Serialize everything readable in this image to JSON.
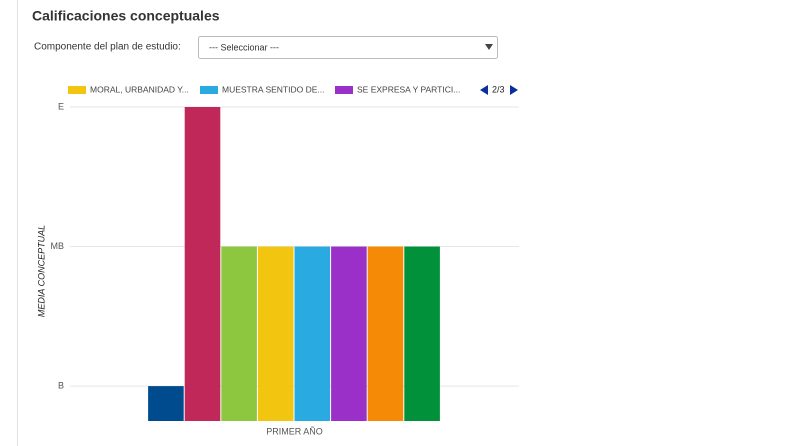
{
  "page": {
    "title": "Calificaciones conceptuales",
    "filter_label": "Componente del plan de estudio:",
    "select_placeholder": "--- Seleccionar ---"
  },
  "chart_data": {
    "type": "bar",
    "y_label": "MEDIA CONCEPTUAL",
    "categories": [
      "PRIMER AÑO"
    ],
    "legend_page": "2/3",
    "series": [
      {
        "color": "#004b8d",
        "values": [
          1
        ]
      },
      {
        "color": "#c0285a",
        "values": [
          3
        ]
      },
      {
        "color": "#8dc63f",
        "values": [
          2
        ]
      },
      {
        "name": "MORAL, URBANIDAD Y...",
        "color": "#f2c511",
        "values": [
          2
        ]
      },
      {
        "name": "MUESTRA SENTIDO DE...",
        "color": "#29abe2",
        "values": [
          2
        ]
      },
      {
        "name": "SE EXPRESA Y PARTICI...",
        "color": "#9b30c8",
        "values": [
          2
        ]
      },
      {
        "color": "#f58a07",
        "values": [
          2
        ]
      },
      {
        "color": "#00913a",
        "values": [
          2
        ]
      }
    ],
    "ylim": [
      0.75,
      3
    ],
    "yticks": [
      {
        "value": 1,
        "label": "B"
      },
      {
        "value": 2,
        "label": "MB"
      },
      {
        "value": 3,
        "label": "E"
      }
    ],
    "grid": true
  }
}
